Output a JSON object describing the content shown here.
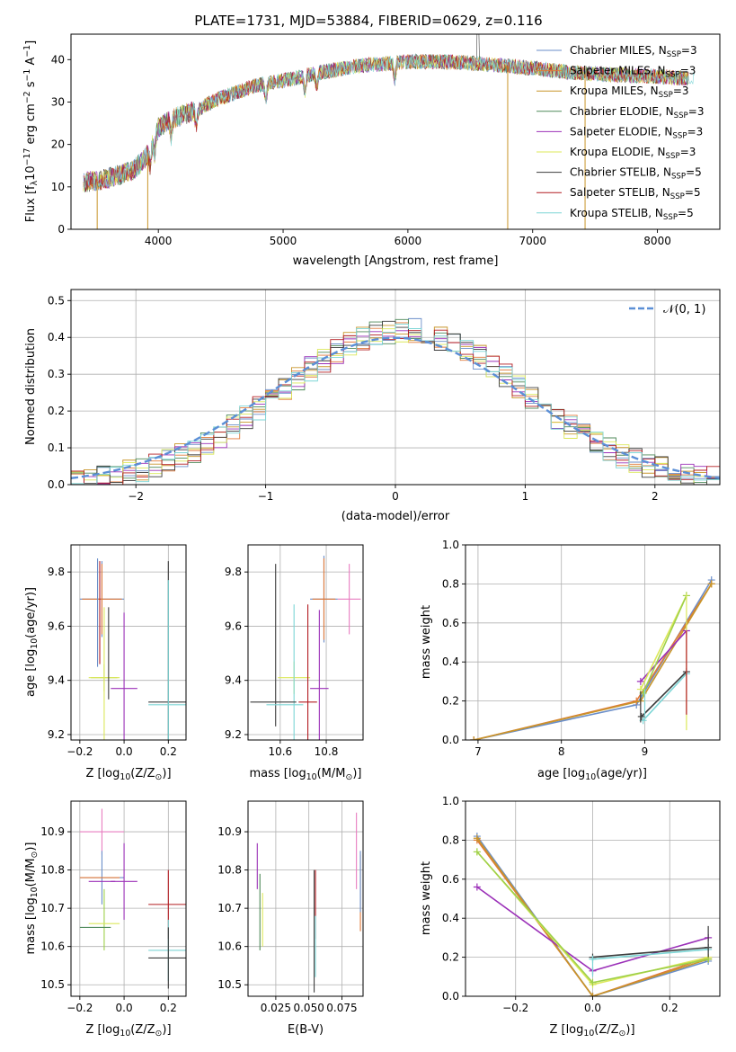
{
  "figure_title": "PLATE=1731, MJD=53884, FIBERID=0629, z=0.116",
  "colors": {
    "chabrier_miles": "#6a8ec9",
    "salpeter_miles": "#e07a3a",
    "kroupa_miles": "#c8952a",
    "chabrier_elodie": "#4f8a5a",
    "salpeter_elodie": "#9b30b8",
    "kroupa_elodie": "#dce85a",
    "chabrier_stelib": "#3c3c3c",
    "salpeter_stelib": "#b31d22",
    "kroupa_stelib": "#7dd6d6",
    "pink": "#e87dc0",
    "green": "#9ed04a",
    "normal": "#5b8fd6",
    "grid": "#b0b0b0"
  },
  "chart_data": [
    {
      "id": "spectrum",
      "type": "line",
      "xlabel": "wavelength [Angstrom, rest frame]",
      "ylabel_parts": [
        "Flux [f",
        "λ",
        "10",
        "−17",
        " erg cm",
        "−2",
        " s",
        "−1",
        " A",
        "−1",
        "]"
      ],
      "xlim": [
        3300,
        8500
      ],
      "ylim": [
        0,
        46
      ],
      "xticks": [
        4000,
        5000,
        6000,
        7000,
        8000
      ],
      "yticks": [
        0,
        10,
        20,
        30,
        40
      ],
      "grid": false,
      "legend_position": "upper-right",
      "legend": [
        {
          "label": "Chabrier MILES, N",
          "sub": "SSP",
          "suffix": "=3",
          "color_key": "chabrier_miles"
        },
        {
          "label": "Salpeter MILES, N",
          "sub": "SSP",
          "suffix": "=3",
          "color_key": "salpeter_miles"
        },
        {
          "label": "Kroupa MILES, N",
          "sub": "SSP",
          "suffix": "=3",
          "color_key": "kroupa_miles"
        },
        {
          "label": "Chabrier ELODIE, N",
          "sub": "SSP",
          "suffix": "=3",
          "color_key": "chabrier_elodie"
        },
        {
          "label": "Salpeter ELODIE, N",
          "sub": "SSP",
          "suffix": "=3",
          "color_key": "salpeter_elodie"
        },
        {
          "label": "Kroupa ELODIE, N",
          "sub": "SSP",
          "suffix": "=3",
          "color_key": "kroupa_elodie"
        },
        {
          "label": "Chabrier STELIB, N",
          "sub": "SSP",
          "suffix": "=5",
          "color_key": "chabrier_stelib"
        },
        {
          "label": "Salpeter STELIB, N",
          "sub": "SSP",
          "suffix": "=5",
          "color_key": "salpeter_stelib"
        },
        {
          "label": "Kroupa STELIB, N",
          "sub": "SSP",
          "suffix": "=5",
          "color_key": "kroupa_stelib"
        }
      ],
      "continuum": [
        [
          3400,
          11
        ],
        [
          3600,
          12
        ],
        [
          3800,
          14
        ],
        [
          3900,
          17
        ],
        [
          3950,
          20
        ],
        [
          4000,
          24
        ],
        [
          4100,
          26
        ],
        [
          4300,
          28
        ],
        [
          4500,
          31
        ],
        [
          4800,
          34
        ],
        [
          5000,
          35
        ],
        [
          5300,
          37
        ],
        [
          5600,
          38.5
        ],
        [
          6000,
          39.5
        ],
        [
          6300,
          39.5
        ],
        [
          6600,
          39
        ],
        [
          7000,
          38
        ],
        [
          7300,
          37
        ],
        [
          7600,
          36.5
        ],
        [
          8000,
          36
        ],
        [
          8300,
          35.5
        ]
      ],
      "absorption_lines": [
        3934,
        3969,
        4102,
        4304,
        4861,
        5175,
        5270,
        5895,
        6563
      ],
      "emission_spike": {
        "x": 6563,
        "y": 48
      },
      "dips": [
        {
          "x": 3510,
          "y": 0
        },
        {
          "x": 3915,
          "y": 0
        },
        {
          "x": 6800,
          "y": 0
        },
        {
          "x": 7420,
          "y": 0
        }
      ]
    },
    {
      "id": "residuals",
      "type": "bar",
      "xlabel": "(data-model)/error",
      "ylabel": "Normed distribution",
      "xlim": [
        -2.5,
        2.5
      ],
      "ylim": [
        0,
        0.53
      ],
      "xticks": [
        -2,
        -1,
        0,
        1,
        2
      ],
      "yticks": [
        0.0,
        0.1,
        0.2,
        0.3,
        0.4,
        0.5
      ],
      "grid": true,
      "legend_position": "upper-right",
      "legend": [
        {
          "label": "𝒩(0, 1)",
          "style": "dashed",
          "color_key": "normal"
        }
      ],
      "bin_width": 0.1,
      "bin_edges_start": -2.5
    },
    {
      "id": "age_vs_Z",
      "type": "scatter",
      "xlabel_parts": [
        "Z [log",
        "10",
        "(Z/Z",
        "⊙",
        ")]"
      ],
      "ylabel_parts": [
        "age  [log",
        "10",
        "(age/yr)]"
      ],
      "xlim": [
        -0.24,
        0.28
      ],
      "ylim": [
        9.18,
        9.9
      ],
      "xticks": [
        -0.2,
        0.0,
        0.2
      ],
      "yticks": [
        9.2,
        9.4,
        9.6,
        9.8
      ],
      "grid": true,
      "points": [
        {
          "x": -0.1,
          "y": 9.7,
          "xerr": 0.1,
          "yerr": 0.14,
          "c": "chabrier_miles"
        },
        {
          "x": -0.1,
          "y": 9.7,
          "xerr": 0.09,
          "yerr": 0.13,
          "c": "salpeter_miles"
        },
        {
          "x": -0.09,
          "y": 9.41,
          "xerr": 0.06,
          "yerr": 0.05,
          "c": "green"
        },
        {
          "x": -0.09,
          "y": 9.41,
          "xerr": 0.07,
          "yerr": 0.26,
          "c": "kroupa_elodie"
        },
        {
          "x": 0.0,
          "y": 9.37,
          "xerr": 0.06,
          "yerr": 0.28,
          "c": "salpeter_elodie"
        },
        {
          "x": 0.2,
          "y": 9.32,
          "xerr": 0.09,
          "yerr": 0.52,
          "c": "chabrier_stelib"
        },
        {
          "x": 0.2,
          "y": 9.31,
          "xerr": 0.09,
          "yerr": 0.46,
          "c": "kroupa_stelib"
        },
        {
          "x": -0.07,
          "y": 9.5,
          "xerr": 0.0,
          "yerr": 0.17,
          "c": "chabrier_stelib"
        },
        {
          "x": -0.12,
          "y": 9.65,
          "xerr": 0.0,
          "yerr": 0.2,
          "c": "chabrier_miles"
        },
        {
          "x": -0.11,
          "y": 9.65,
          "xerr": 0.0,
          "yerr": 0.19,
          "c": "salpeter_stelib"
        }
      ]
    },
    {
      "id": "age_vs_mass",
      "type": "scatter",
      "xlabel_parts": [
        "mass [log",
        "10",
        "(M/M",
        "⊙",
        ")]"
      ],
      "xlim": [
        10.46,
        10.96
      ],
      "ylim": [
        9.18,
        9.9
      ],
      "xticks": [
        10.6,
        10.8
      ],
      "yticks": [
        9.2,
        9.4,
        9.6,
        9.8
      ],
      "grid": true,
      "points": [
        {
          "x": 10.79,
          "y": 9.7,
          "xerr": 0.06,
          "yerr": 0.16,
          "c": "chabrier_miles"
        },
        {
          "x": 10.79,
          "y": 9.7,
          "xerr": 0.05,
          "yerr": 0.15,
          "c": "salpeter_miles"
        },
        {
          "x": 10.9,
          "y": 9.7,
          "xerr": 0.05,
          "yerr": 0.13,
          "c": "pink"
        },
        {
          "x": 10.58,
          "y": 9.53,
          "xerr": 0.0,
          "yerr": 0.3,
          "c": "chabrier_stelib"
        },
        {
          "x": 10.66,
          "y": 9.41,
          "xerr": 0.07,
          "yerr": 0.06,
          "c": "kroupa_elodie"
        },
        {
          "x": 10.66,
          "y": 9.41,
          "xerr": 0.0,
          "yerr": 0.27,
          "c": "kroupa_stelib"
        },
        {
          "x": 10.77,
          "y": 9.37,
          "xerr": 0.04,
          "yerr": 0.29,
          "c": "salpeter_elodie"
        },
        {
          "x": 10.72,
          "y": 9.32,
          "xerr": 0.04,
          "yerr": 0.36,
          "c": "salpeter_stelib"
        },
        {
          "x": 10.57,
          "y": 9.32,
          "xerr": 0.1,
          "yerr": 0.0,
          "c": "chabrier_stelib"
        },
        {
          "x": 10.62,
          "y": 9.31,
          "xerr": 0.08,
          "yerr": 0.0,
          "c": "kroupa_stelib"
        }
      ]
    },
    {
      "id": "weight_vs_age",
      "type": "line",
      "xlabel_parts": [
        "age  [log",
        "10",
        "(age/yr)]"
      ],
      "ylabel": "mass weight",
      "xlim": [
        6.85,
        9.9
      ],
      "ylim": [
        0,
        1.0
      ],
      "xticks": [
        7,
        8,
        9
      ],
      "yticks": [
        0.0,
        0.2,
        0.4,
        0.6,
        0.8,
        1.0
      ],
      "grid": true,
      "series": [
        {
          "c": "chabrier_miles",
          "x": [
            6.95,
            8.9,
            9.8
          ],
          "y": [
            0.0,
            0.18,
            0.82
          ]
        },
        {
          "c": "salpeter_miles",
          "x": [
            6.95,
            8.9,
            9.8
          ],
          "y": [
            0.0,
            0.2,
            0.8
          ]
        },
        {
          "c": "kroupa_miles",
          "x": [
            6.95,
            8.95,
            9.8
          ],
          "y": [
            0.0,
            0.2,
            0.8
          ]
        },
        {
          "c": "salpeter_elodie",
          "x": [
            8.95,
            9.5
          ],
          "y": [
            0.3,
            0.56
          ]
        },
        {
          "c": "kroupa_elodie",
          "x": [
            8.95,
            9.5
          ],
          "y": [
            0.26,
            0.74
          ]
        },
        {
          "c": "green",
          "x": [
            8.98,
            9.5
          ],
          "y": [
            0.24,
            0.74
          ]
        },
        {
          "c": "kroupa_stelib",
          "x": [
            8.98,
            9.5
          ],
          "y": [
            0.1,
            0.34
          ]
        },
        {
          "c": "chabrier_stelib",
          "x": [
            8.96,
            9.5
          ],
          "y": [
            0.12,
            0.35
          ]
        }
      ],
      "errbars": [
        {
          "x": 8.95,
          "ylo": 0.09,
          "yhi": 0.25,
          "c": "chabrier_stelib"
        },
        {
          "x": 9.5,
          "ylo": 0.05,
          "yhi": 0.75,
          "c": "kroupa_elodie"
        },
        {
          "x": 9.5,
          "ylo": 0.13,
          "yhi": 0.56,
          "c": "salpeter_stelib"
        },
        {
          "x": 9.0,
          "ylo": 0.12,
          "yhi": 0.26,
          "c": "kroupa_stelib"
        }
      ]
    },
    {
      "id": "mass_vs_Z",
      "type": "scatter",
      "xlabel_parts": [
        "Z [log",
        "10",
        "(Z/Z",
        "⊙",
        ")]"
      ],
      "ylabel_parts": [
        "mass [log",
        "10",
        "(M/M",
        "⊙",
        ")]"
      ],
      "xlim": [
        -0.24,
        0.28
      ],
      "ylim": [
        10.47,
        10.98
      ],
      "xticks": [
        -0.2,
        0.0,
        0.2
      ],
      "yticks": [
        10.5,
        10.6,
        10.7,
        10.8,
        10.9
      ],
      "grid": true,
      "points": [
        {
          "x": -0.1,
          "y": 10.9,
          "xerr": 0.1,
          "yerr": 0.06,
          "c": "pink"
        },
        {
          "x": -0.1,
          "y": 10.78,
          "xerr": 0.1,
          "yerr": 0.07,
          "c": "chabrier_miles"
        },
        {
          "x": -0.11,
          "y": 10.78,
          "xerr": 0.09,
          "yerr": 0.0,
          "c": "salpeter_miles"
        },
        {
          "x": -0.1,
          "y": 10.77,
          "xerr": 0.06,
          "yerr": 0.0,
          "c": "salpeter_elodie"
        },
        {
          "x": 0.0,
          "y": 10.77,
          "xerr": 0.06,
          "yerr": 0.1,
          "c": "salpeter_elodie"
        },
        {
          "x": -0.09,
          "y": 10.67,
          "xerr": 0.0,
          "yerr": 0.08,
          "c": "green"
        },
        {
          "x": -0.09,
          "y": 10.66,
          "xerr": 0.07,
          "yerr": 0.0,
          "c": "kroupa_elodie"
        },
        {
          "x": -0.13,
          "y": 10.65,
          "xerr": 0.07,
          "yerr": 0.0,
          "c": "chabrier_elodie"
        },
        {
          "x": 0.2,
          "y": 10.71,
          "xerr": 0.09,
          "yerr": 0.09,
          "c": "salpeter_stelib"
        },
        {
          "x": 0.2,
          "y": 10.59,
          "xerr": 0.09,
          "yerr": 0.08,
          "c": "kroupa_stelib"
        },
        {
          "x": 0.2,
          "y": 10.57,
          "xerr": 0.09,
          "yerr": 0.08,
          "c": "chabrier_stelib"
        }
      ]
    },
    {
      "id": "mass_vs_ebv",
      "type": "scatter",
      "xlabel": "E(B-V)",
      "xlim": [
        0.004,
        0.091
      ],
      "ylim": [
        10.47,
        10.98
      ],
      "xticks": [
        0.025,
        0.05,
        0.075
      ],
      "xticklabels": [
        "0.025",
        "0.050",
        "0.075"
      ],
      "yticks": [
        10.5,
        10.6,
        10.7,
        10.8,
        10.9
      ],
      "grid": true,
      "points": [
        {
          "x": 0.011,
          "y": 10.81,
          "xerr": 0.0,
          "yerr": 0.06,
          "c": "salpeter_elodie"
        },
        {
          "x": 0.013,
          "y": 10.69,
          "xerr": 0.0,
          "yerr": 0.1,
          "c": "chabrier_elodie"
        },
        {
          "x": 0.015,
          "y": 10.67,
          "xerr": 0.0,
          "yerr": 0.07,
          "c": "kroupa_elodie"
        },
        {
          "x": 0.054,
          "y": 10.64,
          "xerr": 0.0,
          "yerr": 0.16,
          "c": "chabrier_stelib"
        },
        {
          "x": 0.055,
          "y": 10.71,
          "xerr": 0.0,
          "yerr": 0.09,
          "c": "salpeter_stelib"
        },
        {
          "x": 0.055,
          "y": 10.6,
          "xerr": 0.0,
          "yerr": 0.08,
          "c": "kroupa_stelib"
        },
        {
          "x": 0.086,
          "y": 10.85,
          "xerr": 0.0,
          "yerr": 0.1,
          "c": "pink"
        },
        {
          "x": 0.089,
          "y": 10.74,
          "xerr": 0.0,
          "yerr": 0.1,
          "c": "salpeter_miles"
        },
        {
          "x": 0.089,
          "y": 10.77,
          "xerr": 0.0,
          "yerr": 0.08,
          "c": "chabrier_miles"
        }
      ]
    },
    {
      "id": "weight_vs_Z",
      "type": "line",
      "xlabel_parts": [
        "Z [log",
        "10",
        "(Z/Z",
        "⊙",
        ")]"
      ],
      "ylabel": "mass weight",
      "xlim": [
        -0.33,
        0.33
      ],
      "ylim": [
        0,
        1.0
      ],
      "xticks": [
        -0.2,
        0.0,
        0.2
      ],
      "yticks": [
        0.0,
        0.2,
        0.4,
        0.6,
        0.8,
        1.0
      ],
      "grid": true,
      "series": [
        {
          "c": "chabrier_miles",
          "x": [
            -0.3,
            0.0,
            0.3
          ],
          "y": [
            0.82,
            0.0,
            0.18
          ]
        },
        {
          "c": "salpeter_miles",
          "x": [
            -0.3,
            0.0,
            0.3
          ],
          "y": [
            0.8,
            0.0,
            0.2
          ]
        },
        {
          "c": "kroupa_miles",
          "x": [
            -0.3,
            0.0,
            0.3
          ],
          "y": [
            0.81,
            0.0,
            0.19
          ]
        },
        {
          "c": "salpeter_elodie",
          "x": [
            -0.3,
            0.0,
            0.3
          ],
          "y": [
            0.56,
            0.13,
            0.3
          ]
        },
        {
          "c": "kroupa_elodie",
          "x": [
            -0.3,
            0.0,
            0.3
          ],
          "y": [
            0.74,
            0.06,
            0.2
          ]
        },
        {
          "c": "green",
          "x": [
            -0.3,
            0.0,
            0.3
          ],
          "y": [
            0.74,
            0.07,
            0.19
          ]
        },
        {
          "c": "chabrier_stelib",
          "x": [
            0.0,
            0.3
          ],
          "y": [
            0.2,
            0.25
          ]
        },
        {
          "c": "kroupa_stelib",
          "x": [
            0.0,
            0.3
          ],
          "y": [
            0.19,
            0.24
          ]
        }
      ],
      "errbars": [
        {
          "x": 0.3,
          "ylo": 0.2,
          "yhi": 0.36,
          "c": "chabrier_stelib"
        },
        {
          "x": 0.0,
          "ylo": 0.1,
          "yhi": 0.2,
          "c": "kroupa_stelib"
        }
      ]
    }
  ]
}
